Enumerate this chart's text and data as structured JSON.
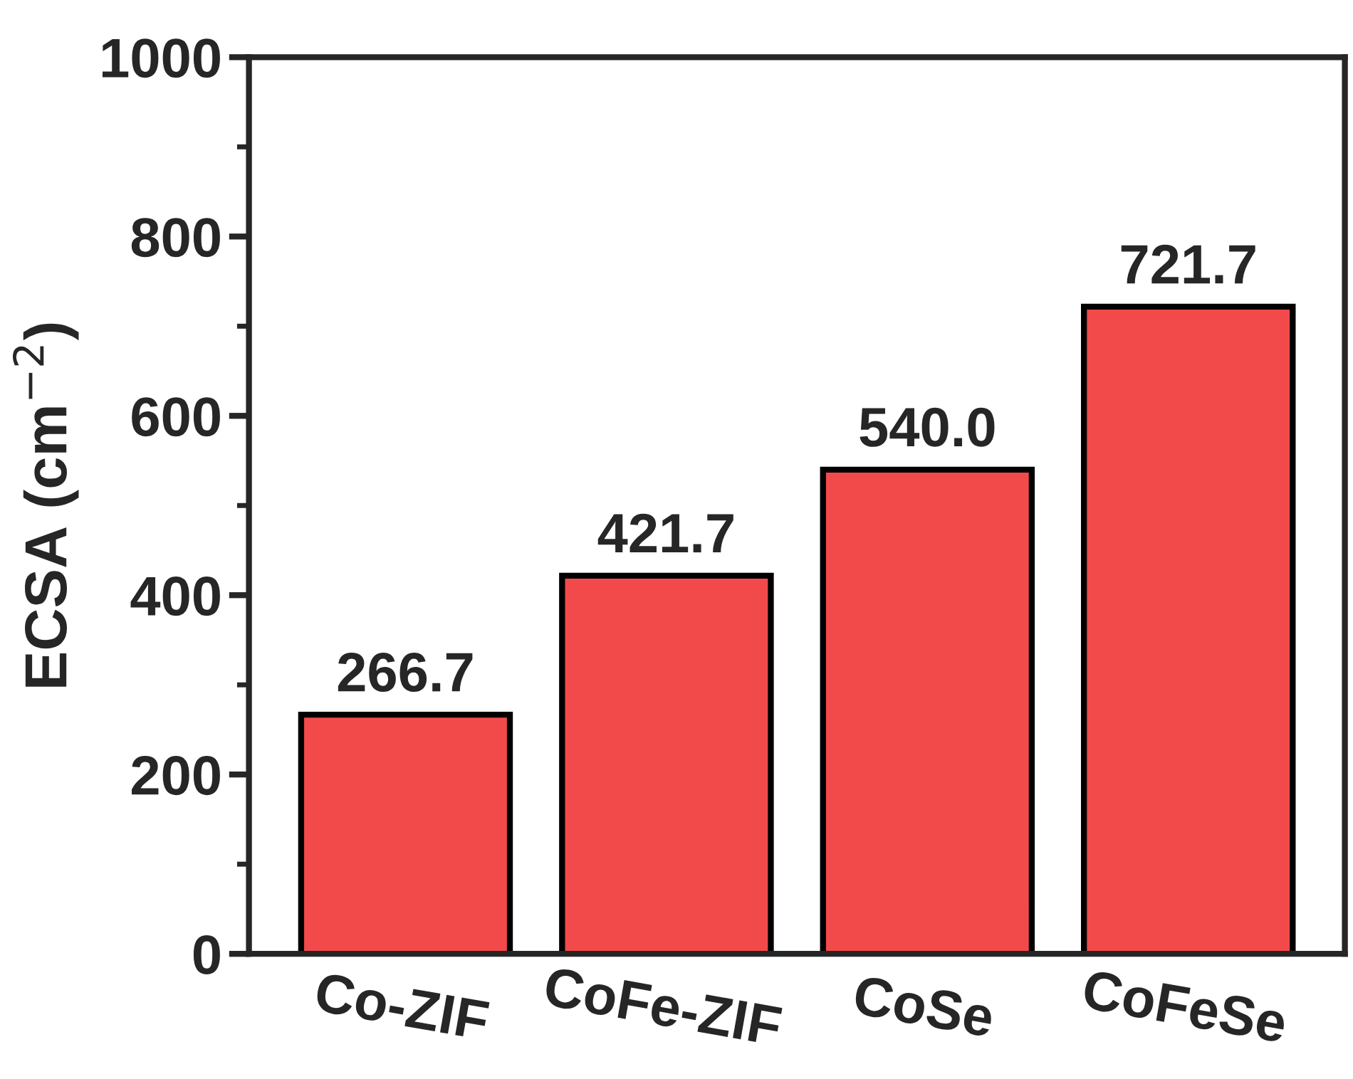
{
  "chart_data": {
    "type": "bar",
    "ylabel": "ECSA (cm$^{−2}$)",
    "categories": [
      "Co-ZIF",
      "CoFe-ZIF",
      "CoSe",
      "CoFeSe"
    ],
    "values": [
      266.7,
      421.7,
      540.0,
      721.7
    ],
    "value_labels": [
      "266.7",
      "421.7",
      "540.0",
      "721.7"
    ],
    "color": "#f24a4a",
    "ylim": [
      0,
      1000
    ],
    "yticks": [
      0,
      200,
      400,
      600,
      800,
      1000
    ],
    "grid": false,
    "legend": false
  }
}
